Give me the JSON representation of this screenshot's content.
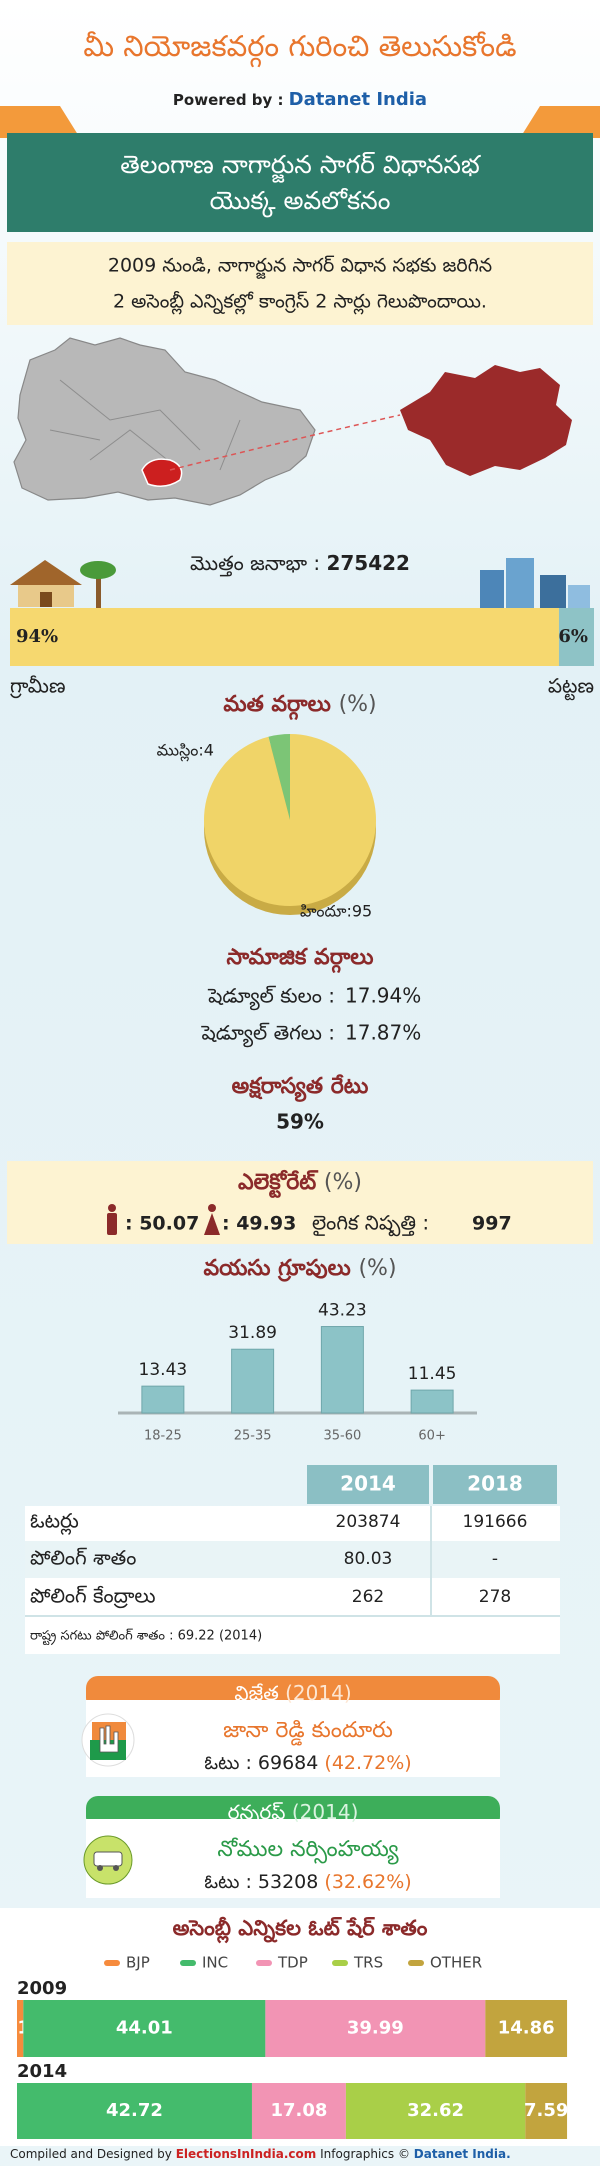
{
  "header": {
    "title": "మీ నియోజకవర్గం గురించి తెలుసుకోండి",
    "powered_by": "Powered by :",
    "brand": "Datanet India"
  },
  "banner": {
    "title_lines": [
      "తెలంగాణ నాగార్జున సాగర్ విధానసభ",
      "యొక్క అవలోకనం"
    ]
  },
  "summary": {
    "lines": [
      "2009 నుండి, నాగార్జున సాగర్ విధాన సభకు జరిగిన",
      "2 అసెంబ్లీ ఎన్నికల్లో కాంగ్రెస్ 2 సార్లు గెలుపొందాయి."
    ]
  },
  "social": {
    "title": "సామాజిక వర్గాలు",
    "rows": [
      [
        "షెడ్యూల్ కులం :",
        "17.94%"
      ],
      [
        "షెడ్యూల్ తెగలు :",
        "17.87%"
      ]
    ]
  },
  "literacy": {
    "title": "అక్షరాస్యత రేటు",
    "value": "59%"
  },
  "electorate": {
    "title": "ఎలెక్టోరేట్",
    "unit": "(%)",
    "male": ": 50.07",
    "female": ": 49.93",
    "sex_ratio_label": "లైంగిక నిష్పత్తి :",
    "sex_ratio": "997"
  },
  "table": {
    "columns": [
      "2014",
      "2018"
    ],
    "rows": [
      [
        "ఓటర్లు",
        "203874",
        "191666"
      ],
      [
        "పోలింగ్ శాతం",
        "80.03",
        "-"
      ],
      [
        "పోలింగ్ కేంద్రాలు",
        "262",
        "278"
      ]
    ],
    "footnote": "రాష్ట్ర సగటు పోలింగ్ శాతం : 69.22 (2014)"
  },
  "winner": {
    "label": "విజేత",
    "year": "(2014)",
    "name": "జానా రెడ్డి కుందూరు",
    "votes": "ఓటు : 69684",
    "share": "(42.72%)"
  },
  "runner_up": {
    "label": "రన్నరప్",
    "year": "(2014)",
    "name": "నోముల నర్సింహయ్య",
    "votes": "ఓటు : 53208",
    "share": "(32.62%)"
  },
  "footer": {
    "credit": "Compiled and Designed by",
    "site": "ElectionsInIndia.com",
    "infographics": "Infographics ©",
    "brand": "Datanet India."
  },
  "chart_data": [
    {
      "type": "bar",
      "orientation": "horizontal",
      "stacked": true,
      "title": "మొత్తం జనాభా :",
      "total": 275422,
      "xlim": [
        0,
        100
      ],
      "series": [
        {
          "name": "గ్రామీణ",
          "color": "#f6d86f",
          "values": [
            94
          ],
          "value_labels": [
            "94%"
          ]
        },
        {
          "name": "పట్టణ",
          "color": "#8ec3c6",
          "values": [
            6
          ],
          "value_labels": [
            "6%"
          ]
        }
      ]
    },
    {
      "type": "pie",
      "title": "మత వర్గాలు",
      "unit": "(%)",
      "values": [
        4,
        95
      ],
      "value_labels": [
        "ముస్లిం:4",
        "హిందూ:95"
      ],
      "colors": [
        "#7cc576",
        "#f0d468"
      ]
    },
    {
      "type": "bar",
      "orientation": "vertical",
      "title": "వయసు గ్రూపులు",
      "unit": "(%)",
      "categories": [
        "18-25",
        "25-35",
        "35-60",
        "60+"
      ],
      "values": [
        13.43,
        31.89,
        43.23,
        11.45
      ],
      "color": "#8cc3c7",
      "ylim": [
        0,
        50
      ]
    },
    {
      "type": "bar",
      "orientation": "horizontal",
      "stacked": true,
      "title": "అసెంబ్లీ ఎన్నికల ఓట్ షేర్ శాతం",
      "categories": [
        "2009",
        "2014"
      ],
      "xlim": [
        0,
        100
      ],
      "series": [
        {
          "name": "BJP",
          "color": "#f68b3d",
          "values": [
            1.15,
            null
          ]
        },
        {
          "name": "INC",
          "color": "#44bb6c",
          "values": [
            44.01,
            42.72
          ]
        },
        {
          "name": "TDP",
          "color": "#f294b4",
          "values": [
            39.99,
            17.08
          ]
        },
        {
          "name": "TRS",
          "color": "#a9cf48",
          "values": [
            null,
            32.62
          ]
        },
        {
          "name": "OTHER",
          "color": "#c2a43e",
          "values": [
            14.86,
            7.59
          ]
        }
      ]
    }
  ]
}
